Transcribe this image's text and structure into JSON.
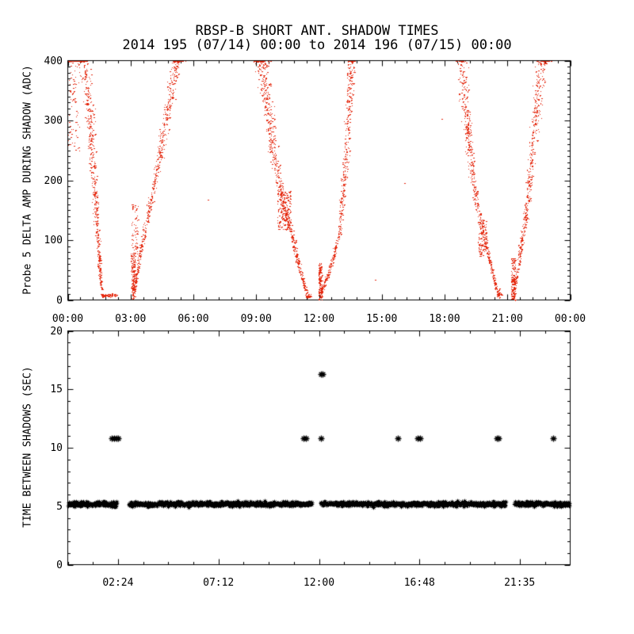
{
  "title": {
    "line1": "RBSP-B SHORT ANT. SHADOW TIMES",
    "line2": "2014 195 (07/14) 00:00 to 2014 196 (07/15) 00:00"
  },
  "colors": {
    "background": "#ffffff",
    "axis": "#000000",
    "scatter_red": "#e5290f",
    "marker_black": "#000000"
  },
  "chart_data": [
    {
      "type": "scatter",
      "panel": "top",
      "title": "",
      "xlabel": "",
      "ylabel": "Probe 5 DELTA AMP DURING SHADOW (ADC)",
      "xlim_hours": [
        0,
        24
      ],
      "ylim": [
        0,
        400
      ],
      "grid": false,
      "x_tick_hours": [
        0,
        3,
        6,
        9,
        12,
        15,
        18,
        21,
        24
      ],
      "x_tick_labels": [
        "00:00",
        "03:00",
        "06:00",
        "09:00",
        "12:00",
        "15:00",
        "18:00",
        "21:00",
        "00:00"
      ],
      "x_minor_step_hours": 0.6,
      "y_tick_values": [
        0,
        100,
        200,
        300,
        400
      ],
      "y_tick_labels": [
        "0",
        "100",
        "200",
        "300",
        "400"
      ],
      "y_minor_step": 10,
      "marker": "dot",
      "color": "#e5290f",
      "branches": [
        {
          "name": "eclipse1-ingress",
          "n": 520,
          "spread_bottom": 0.05,
          "spread_top": 0.42,
          "points": [
            [
              0.55,
              435
            ],
            [
              0.85,
              380
            ],
            [
              1.05,
              300
            ],
            [
              1.2,
              220
            ],
            [
              1.35,
              140
            ],
            [
              1.5,
              60
            ],
            [
              1.6,
              18
            ]
          ]
        },
        {
          "name": "eclipse1-egress",
          "n": 560,
          "spread_bottom": 0.07,
          "spread_top": 0.38,
          "points": [
            [
              3.15,
              8
            ],
            [
              3.3,
              45
            ],
            [
              3.55,
              95
            ],
            [
              3.9,
              155
            ],
            [
              4.3,
              225
            ],
            [
              4.7,
              305
            ],
            [
              5.05,
              375
            ],
            [
              5.35,
              435
            ]
          ]
        },
        {
          "name": "eclipse2-ingress",
          "n": 680,
          "spread_bottom": 0.06,
          "spread_top": 0.5,
          "points": [
            [
              9.15,
              435
            ],
            [
              9.45,
              345
            ],
            [
              9.75,
              260
            ],
            [
              10.1,
              190
            ],
            [
              10.45,
              140
            ],
            [
              10.75,
              100
            ],
            [
              11.05,
              55
            ],
            [
              11.3,
              22
            ],
            [
              11.48,
              8
            ]
          ]
        },
        {
          "name": "eclipse2-egress",
          "n": 520,
          "spread_bottom": 0.06,
          "spread_top": 0.32,
          "points": [
            [
              12.05,
              6
            ],
            [
              12.3,
              32
            ],
            [
              12.7,
              72
            ],
            [
              13.0,
              125
            ],
            [
              13.2,
              210
            ],
            [
              13.4,
              310
            ],
            [
              13.6,
              435
            ]
          ]
        },
        {
          "name": "eclipse3-ingress",
          "n": 580,
          "spread_bottom": 0.05,
          "spread_top": 0.38,
          "points": [
            [
              18.7,
              435
            ],
            [
              18.95,
              330
            ],
            [
              19.2,
              245
            ],
            [
              19.5,
              165
            ],
            [
              19.85,
              110
            ],
            [
              20.15,
              65
            ],
            [
              20.45,
              22
            ],
            [
              20.62,
              10
            ]
          ]
        },
        {
          "name": "eclipse3-egress",
          "n": 520,
          "spread_bottom": 0.07,
          "spread_top": 0.4,
          "points": [
            [
              21.3,
              10
            ],
            [
              21.5,
              55
            ],
            [
              21.72,
              105
            ],
            [
              21.95,
              165
            ],
            [
              22.2,
              255
            ],
            [
              22.45,
              340
            ],
            [
              22.65,
              420
            ],
            [
              22.95,
              445
            ]
          ]
        }
      ],
      "clusters": [
        {
          "name": "day-start-sparse",
          "t": [
            0.02,
            0.55
          ],
          "v": [
            250,
            435
          ],
          "n": 90
        },
        {
          "name": "egress1-base",
          "t": [
            3.02,
            3.22
          ],
          "v": [
            0,
            80
          ],
          "n": 170
        },
        {
          "name": "egress1-mid",
          "t": [
            3.05,
            3.35
          ],
          "v": [
            75,
            160
          ],
          "n": 60
        },
        {
          "name": "ingress2-knot",
          "t": [
            10.0,
            10.65
          ],
          "v": [
            118,
            185
          ],
          "n": 160
        },
        {
          "name": "egress2-base",
          "t": [
            11.97,
            12.12
          ],
          "v": [
            0,
            62
          ],
          "n": 150
        },
        {
          "name": "ingress3-knot",
          "t": [
            19.6,
            20.0
          ],
          "v": [
            72,
            135
          ],
          "n": 120
        },
        {
          "name": "egress3-base",
          "t": [
            21.18,
            21.38
          ],
          "v": [
            0,
            70
          ],
          "n": 150
        }
      ],
      "flats": [
        {
          "t": [
            1.55,
            2.33
          ],
          "v": 8,
          "n": 100
        },
        {
          "t": [
            11.35,
            11.6
          ],
          "v": 7,
          "n": 35
        },
        {
          "t": [
            20.48,
            20.74
          ],
          "v": 9,
          "n": 35
        }
      ],
      "stray_points": [
        [
          6.69,
          167
        ],
        [
          14.65,
          34
        ],
        [
          16.08,
          196
        ],
        [
          17.86,
          302
        ]
      ]
    },
    {
      "type": "scatter",
      "panel": "bottom",
      "title": "",
      "xlabel": "",
      "ylabel": "TIME BETWEEN SHADOWS (SEC)",
      "xlim_hours": [
        0,
        24
      ],
      "ylim": [
        0,
        20
      ],
      "grid": false,
      "x_tick_hours": [
        2.4,
        7.2,
        12.0,
        16.8,
        21.5833
      ],
      "x_tick_labels": [
        "02:24",
        "07:12",
        "12:00",
        "16:48",
        "21:35"
      ],
      "x_minor_step_hours": 1.2,
      "y_tick_values": [
        0,
        5,
        10,
        15,
        20
      ],
      "y_tick_labels": [
        "0",
        "5",
        "10",
        "15",
        "20"
      ],
      "y_minor_step": 1,
      "marker": "asterisk",
      "color": "#000000",
      "band": {
        "value": 5.2,
        "jitter": 0.28,
        "t_start": 0.03,
        "t_end": 23.97,
        "step_hours": 0.018,
        "gaps": [
          [
            2.35,
            2.92
          ],
          [
            11.67,
            12.08
          ],
          [
            20.92,
            21.33
          ]
        ]
      },
      "outliers": {
        "value": 10.8,
        "times": [
          2.1,
          2.2,
          2.31,
          2.42,
          11.28,
          11.38,
          12.1,
          15.75,
          16.72,
          16.84,
          20.48,
          20.58,
          23.2
        ]
      },
      "high_outliers": {
        "value": 16.3,
        "times": [
          12.08,
          12.18
        ]
      }
    }
  ]
}
